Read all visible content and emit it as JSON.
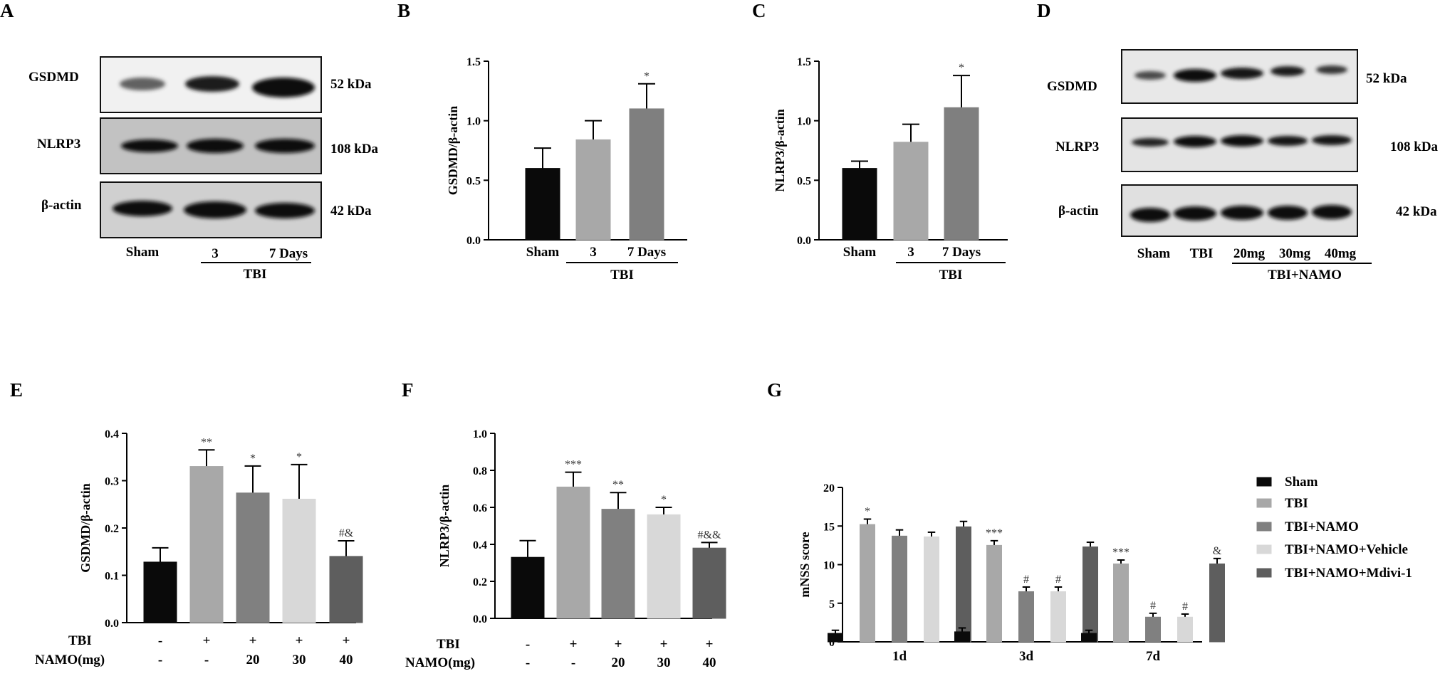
{
  "panels": {
    "A": {
      "letter": "A",
      "rows": [
        "GSDMD",
        "NLRP3",
        "β-actin"
      ],
      "kda": [
        "52 kDa",
        "108 kDa",
        "42 kDa"
      ],
      "lanes": [
        "Sham",
        "3",
        "7 Days"
      ],
      "group": "TBI"
    },
    "D": {
      "letter": "D",
      "rows": [
        "GSDMD",
        "NLRP3",
        "β-actin"
      ],
      "kda": [
        "52 kDa",
        "108 kDa",
        "42 kDa"
      ],
      "lanes": [
        "Sham",
        "TBI",
        "20mg",
        "30mg",
        "40mg"
      ],
      "group": "TBI+NAMO"
    },
    "B": {
      "letter": "B"
    },
    "C": {
      "letter": "C"
    },
    "E": {
      "letter": "E",
      "row_labels": [
        "TBI",
        "NAMO(mg)"
      ]
    },
    "F": {
      "letter": "F",
      "row_labels": [
        "TBI",
        "NAMO(mg)"
      ]
    },
    "G": {
      "letter": "G"
    }
  },
  "chart_data": [
    {
      "panel": "B",
      "type": "bar",
      "categories": [
        "Sham",
        "3",
        "7 Days"
      ],
      "values": [
        0.6,
        0.84,
        1.1
      ],
      "errors": [
        0.17,
        0.16,
        0.21
      ],
      "annotations": [
        "",
        "",
        "*"
      ],
      "colors": [
        "#0a0a0a",
        "#a8a8a8",
        "#7f7f7f"
      ],
      "ylabel": "GSDMD/β-actin",
      "ylim": [
        0,
        1.5
      ],
      "yticks": [
        "0.0",
        "0.5",
        "1.0",
        "1.5"
      ],
      "group_label": "TBI"
    },
    {
      "panel": "C",
      "type": "bar",
      "categories": [
        "Sham",
        "3",
        "7 Days"
      ],
      "values": [
        0.6,
        0.82,
        1.11
      ],
      "errors": [
        0.06,
        0.15,
        0.27
      ],
      "annotations": [
        "",
        "",
        "*"
      ],
      "colors": [
        "#0a0a0a",
        "#a8a8a8",
        "#7f7f7f"
      ],
      "ylabel": "NLRP3/β-actin",
      "ylim": [
        0,
        1.5
      ],
      "yticks": [
        "0.0",
        "0.5",
        "1.0",
        "1.5"
      ],
      "group_label": "TBI"
    },
    {
      "panel": "E",
      "type": "bar",
      "tbi_row": [
        "-",
        "+",
        "+",
        "+",
        "+"
      ],
      "namo_row": [
        "-",
        "-",
        "20",
        "30",
        "40"
      ],
      "values": [
        0.128,
        0.33,
        0.274,
        0.261,
        0.14
      ],
      "errors": [
        0.03,
        0.035,
        0.057,
        0.073,
        0.033
      ],
      "annotations": [
        "",
        "**",
        "*",
        "*",
        "#&"
      ],
      "colors": [
        "#0a0a0a",
        "#a8a8a8",
        "#808080",
        "#d8d8d8",
        "#5e5e5e"
      ],
      "ylabel": "GSDMD/β-actin",
      "ylim": [
        0,
        0.4
      ],
      "yticks": [
        "0.0",
        "0.1",
        "0.2",
        "0.3",
        "0.4"
      ]
    },
    {
      "panel": "F",
      "type": "bar",
      "tbi_row": [
        "-",
        "+",
        "+",
        "+",
        "+"
      ],
      "namo_row": [
        "-",
        "-",
        "20",
        "30",
        "40"
      ],
      "values": [
        0.33,
        0.71,
        0.59,
        0.56,
        0.38
      ],
      "errors": [
        0.09,
        0.08,
        0.09,
        0.04,
        0.03
      ],
      "annotations": [
        "",
        "***",
        "**",
        "*",
        "#&&"
      ],
      "colors": [
        "#0a0a0a",
        "#a8a8a8",
        "#808080",
        "#d8d8d8",
        "#5e5e5e"
      ],
      "ylabel": "NLRP3/β-actin",
      "ylim": [
        0,
        1.0
      ],
      "yticks": [
        "0.0",
        "0.2",
        "0.4",
        "0.6",
        "0.8",
        "1.0"
      ]
    },
    {
      "panel": "G",
      "type": "bar",
      "categories": [
        "1d",
        "3d",
        "7d"
      ],
      "series": [
        {
          "name": "Sham",
          "color": "#0a0a0a",
          "values": [
            1.1,
            1.3,
            1.1
          ],
          "errors": [
            0.4,
            0.5,
            0.4
          ],
          "annotations": [
            "",
            "",
            ""
          ]
        },
        {
          "name": "TBI",
          "color": "#a8a8a8",
          "values": [
            15.2,
            12.5,
            10.1
          ],
          "errors": [
            0.7,
            0.6,
            0.5
          ],
          "annotations": [
            "*",
            "***",
            "***"
          ]
        },
        {
          "name": "TBI+NAMO",
          "color": "#808080",
          "values": [
            13.7,
            6.5,
            3.2
          ],
          "errors": [
            0.8,
            0.6,
            0.5
          ],
          "annotations": [
            "",
            "#",
            "#"
          ]
        },
        {
          "name": "TBI+NAMO+Vehicle",
          "color": "#d8d8d8",
          "values": [
            13.6,
            6.5,
            3.2
          ],
          "errors": [
            0.6,
            0.6,
            0.4
          ],
          "annotations": [
            "",
            "#",
            "#"
          ]
        },
        {
          "name": "TBI+NAMO+Mdivi-1",
          "color": "#5e5e5e",
          "values": [
            14.9,
            12.3,
            10.1
          ],
          "errors": [
            0.7,
            0.6,
            0.7
          ],
          "annotations": [
            "",
            "",
            "&"
          ]
        }
      ],
      "ylabel": "mNSS  score",
      "ylim": [
        0,
        20
      ],
      "yticks": [
        "0",
        "5",
        "10",
        "15",
        "20"
      ],
      "legend": "right"
    }
  ]
}
